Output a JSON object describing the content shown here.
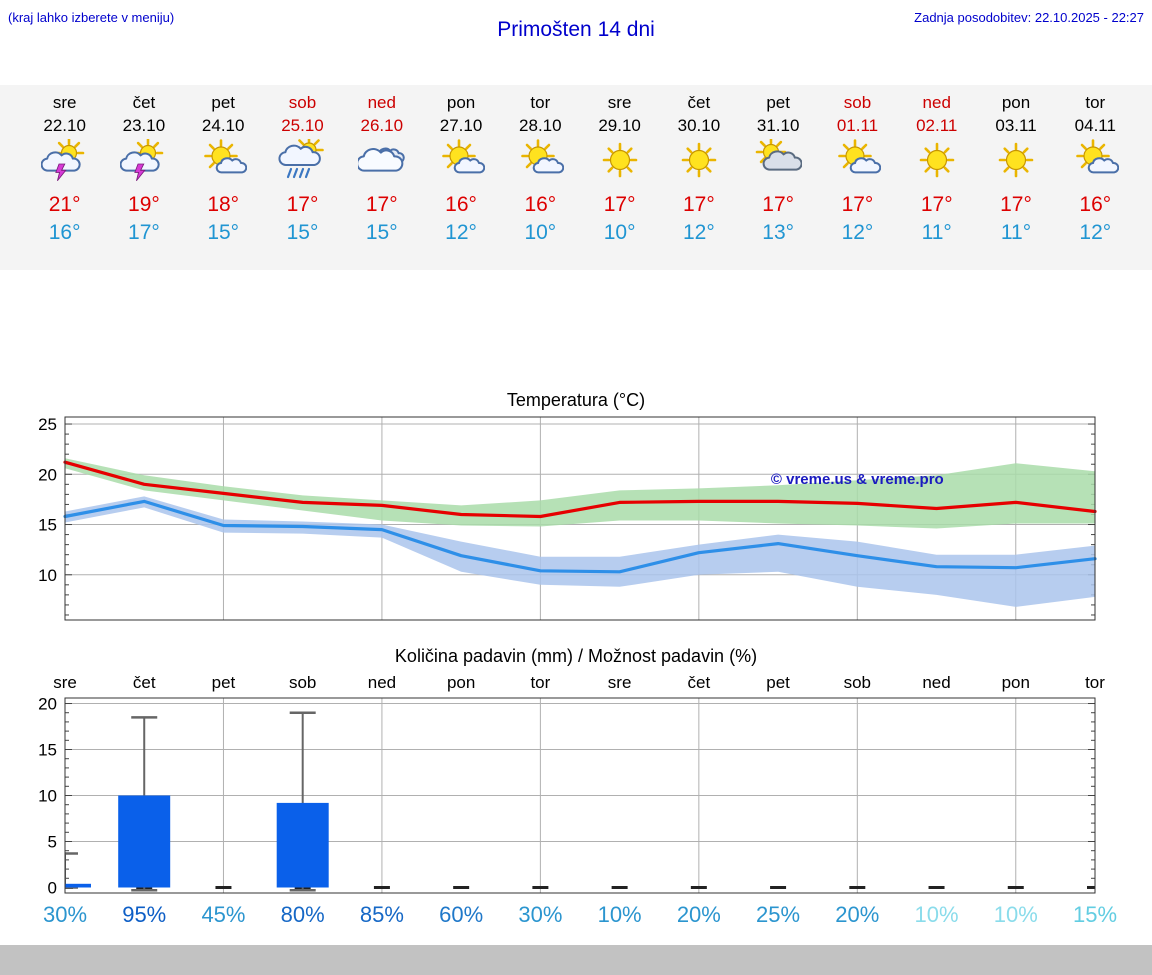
{
  "header": {
    "hint": "(kraj lahko izberete v meniju)",
    "title": "Primošten 14 dni",
    "updated": "Zadnja posodobitev: 22.10.2025 - 22:27"
  },
  "colors": {
    "link_blue": "#0000cc",
    "temp_high_red": "#dd0000",
    "temp_low_blue": "#2095d2",
    "weekend_red": "#cc0000",
    "strip_bg": "#f4f4f4",
    "footer_gray": "#c2c2c2"
  },
  "forecast": {
    "days": [
      {
        "name": "sre",
        "date": "22.10",
        "weekend": false,
        "icon": "storm",
        "high": "21°",
        "low": "16°"
      },
      {
        "name": "čet",
        "date": "23.10",
        "weekend": false,
        "icon": "storm",
        "high": "19°",
        "low": "17°"
      },
      {
        "name": "pet",
        "date": "24.10",
        "weekend": false,
        "icon": "sun-cloud",
        "high": "18°",
        "low": "15°"
      },
      {
        "name": "sob",
        "date": "25.10",
        "weekend": true,
        "icon": "rain-sun",
        "high": "17°",
        "low": "15°"
      },
      {
        "name": "ned",
        "date": "26.10",
        "weekend": true,
        "icon": "cloudy",
        "high": "17°",
        "low": "15°"
      },
      {
        "name": "pon",
        "date": "27.10",
        "weekend": false,
        "icon": "sun-cloud",
        "high": "16°",
        "low": "12°"
      },
      {
        "name": "tor",
        "date": "28.10",
        "weekend": false,
        "icon": "sun-cloud",
        "high": "16°",
        "low": "10°"
      },
      {
        "name": "sre",
        "date": "29.10",
        "weekend": false,
        "icon": "sun",
        "high": "17°",
        "low": "10°"
      },
      {
        "name": "čet",
        "date": "30.10",
        "weekend": false,
        "icon": "sun",
        "high": "17°",
        "low": "12°"
      },
      {
        "name": "pet",
        "date": "31.10",
        "weekend": false,
        "icon": "cloud-sun",
        "high": "17°",
        "low": "13°"
      },
      {
        "name": "sob",
        "date": "01.11",
        "weekend": true,
        "icon": "sun-cloud",
        "high": "17°",
        "low": "12°"
      },
      {
        "name": "ned",
        "date": "02.11",
        "weekend": true,
        "icon": "sun",
        "high": "17°",
        "low": "11°"
      },
      {
        "name": "pon",
        "date": "03.11",
        "weekend": false,
        "icon": "sun",
        "high": "17°",
        "low": "11°"
      },
      {
        "name": "tor",
        "date": "04.11",
        "weekend": false,
        "icon": "sun-cloud",
        "high": "16°",
        "low": "12°"
      }
    ]
  },
  "chart_data": [
    {
      "type": "line",
      "title": "Temperatura (°C)",
      "watermark": "© vreme.us & vreme.pro",
      "x_days": [
        "sre",
        "čet",
        "pet",
        "sob",
        "ned",
        "pon",
        "tor",
        "sre",
        "čet",
        "pet",
        "sob",
        "ned",
        "pon",
        "tor"
      ],
      "ylim": [
        5.5,
        25.7
      ],
      "yticks": [
        10,
        15,
        20,
        25
      ],
      "grid": true,
      "series": [
        {
          "name": "max-temp",
          "color": "#e60000",
          "values": [
            21.2,
            19.0,
            18.1,
            17.2,
            16.9,
            16.0,
            15.8,
            17.2,
            17.3,
            17.3,
            17.1,
            16.6,
            17.2,
            16.3
          ]
        },
        {
          "name": "min-temp",
          "color": "#2e8fe8",
          "values": [
            15.8,
            17.3,
            14.9,
            14.8,
            14.5,
            11.9,
            10.4,
            10.3,
            12.2,
            13.1,
            11.9,
            10.8,
            10.7,
            11.6
          ]
        }
      ],
      "bands": [
        {
          "name": "max-range",
          "color": "#a9dca9",
          "upper": [
            21.6,
            19.9,
            18.8,
            17.9,
            17.4,
            16.9,
            17.4,
            18.4,
            18.6,
            18.9,
            19.4,
            19.9,
            21.1,
            20.3
          ],
          "lower": [
            20.6,
            18.4,
            17.4,
            16.4,
            15.4,
            14.9,
            14.8,
            15.4,
            15.4,
            15.1,
            14.9,
            14.6,
            15.1,
            15.1
          ]
        },
        {
          "name": "min-range",
          "color": "#aac4ec",
          "upper": [
            16.3,
            17.8,
            15.5,
            15.3,
            15.0,
            13.3,
            11.8,
            11.8,
            13.0,
            14.0,
            13.3,
            12.0,
            12.0,
            12.9
          ],
          "lower": [
            15.2,
            16.7,
            14.2,
            14.1,
            13.7,
            10.3,
            9.0,
            8.8,
            10.0,
            10.3,
            8.8,
            8.0,
            6.8,
            7.8
          ]
        }
      ]
    },
    {
      "type": "bar",
      "title": "Količina padavin (mm) / Možnost padavin (%)",
      "x_days": [
        "sre",
        "čet",
        "pet",
        "sob",
        "ned",
        "pon",
        "tor",
        "sre",
        "čet",
        "pet",
        "sob",
        "ned",
        "pon",
        "tor"
      ],
      "ylim": [
        -0.6,
        20.6
      ],
      "yticks": [
        0,
        5,
        10,
        15,
        20
      ],
      "grid": true,
      "bar_color": "#0a60ea",
      "values": [
        0.4,
        10,
        0,
        9.2,
        0,
        0,
        0,
        0,
        0,
        0,
        0,
        0,
        0,
        0
      ],
      "whisker_high": [
        3.7,
        18.5,
        0,
        19,
        0,
        0,
        0,
        0,
        0,
        0,
        0,
        0,
        0,
        0
      ],
      "whisker_low": [
        0,
        -0.3,
        0,
        -0.3,
        0,
        0,
        0,
        0,
        0,
        0,
        0,
        0,
        0,
        0
      ],
      "probabilities": [
        {
          "label": "30%",
          "color": "#2b95cf"
        },
        {
          "label": "95%",
          "color": "#0d5ec6"
        },
        {
          "label": "45%",
          "color": "#2b95cf"
        },
        {
          "label": "80%",
          "color": "#1668c6"
        },
        {
          "label": "85%",
          "color": "#1668c6"
        },
        {
          "label": "60%",
          "color": "#1f78c9"
        },
        {
          "label": "30%",
          "color": "#2b95cf"
        },
        {
          "label": "10%",
          "color": "#2b95cf"
        },
        {
          "label": "20%",
          "color": "#2b95cf"
        },
        {
          "label": "25%",
          "color": "#2b95cf"
        },
        {
          "label": "20%",
          "color": "#2b95cf"
        },
        {
          "label": "10%",
          "color": "#8adceb"
        },
        {
          "label": "10%",
          "color": "#8adceb"
        },
        {
          "label": "15%",
          "color": "#62cde2"
        }
      ]
    }
  ]
}
